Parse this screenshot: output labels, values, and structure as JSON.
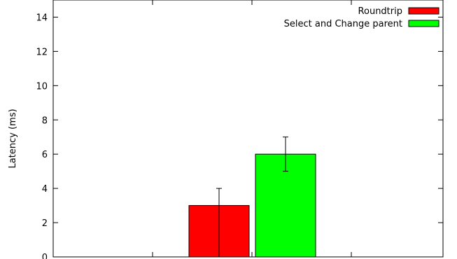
{
  "chart_data": {
    "type": "bar",
    "title": "",
    "xlabel": "",
    "ylabel": "Latency (ms)",
    "ylim": [
      0,
      15
    ],
    "yticks": [
      0,
      2,
      4,
      6,
      8,
      10,
      12,
      14
    ],
    "grid": false,
    "legend_position": "top-right",
    "series": [
      {
        "name": "Roundtrip",
        "value": 3,
        "error_low": 0,
        "error_high": 4,
        "color": "#ff0000"
      },
      {
        "name": "Select and Change parent",
        "value": 6,
        "error_low": 5,
        "error_high": 7,
        "color": "#00ff00"
      }
    ]
  }
}
